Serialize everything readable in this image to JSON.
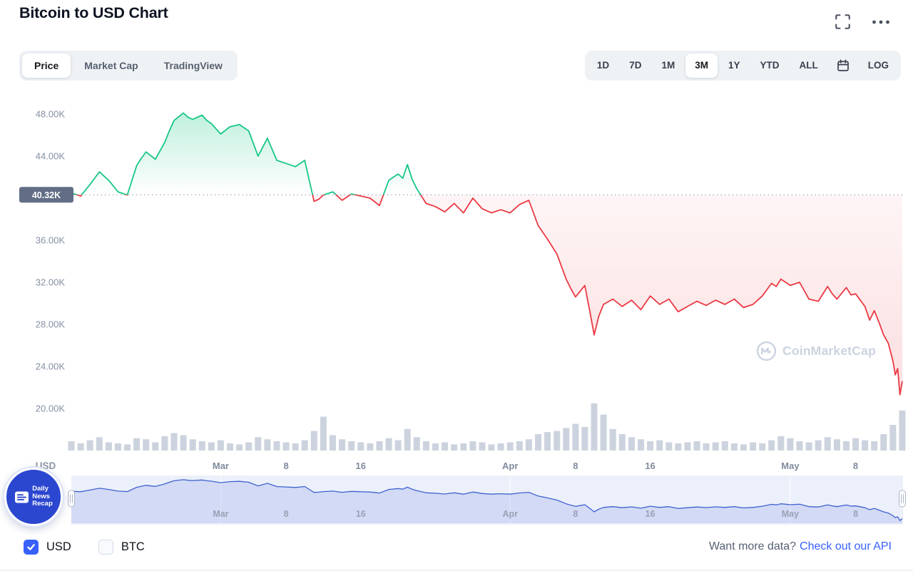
{
  "header": {
    "title": "Bitcoin to USD Chart"
  },
  "toolbar": {
    "chart_tabs": [
      {
        "label": "Price",
        "active": true
      },
      {
        "label": "Market Cap",
        "active": false
      },
      {
        "label": "TradingView",
        "active": false
      }
    ],
    "range_buttons": [
      {
        "label": "1D",
        "active": false
      },
      {
        "label": "7D",
        "active": false
      },
      {
        "label": "1M",
        "active": false
      },
      {
        "label": "3M",
        "active": true
      },
      {
        "label": "1Y",
        "active": false
      },
      {
        "label": "YTD",
        "active": false
      },
      {
        "label": "ALL",
        "active": false
      }
    ],
    "log_label": "LOG"
  },
  "colors": {
    "up": "#16c784",
    "down": "#ea3943",
    "accent": "#3861fb",
    "axis_text": "#848fa3",
    "badge_bg": "#616e85",
    "volume": "#ccd3de",
    "nav_line": "#4062cf"
  },
  "chart_data": {
    "type": "line",
    "title": "Bitcoin to USD Chart",
    "x_axis": {
      "labels": [
        {
          "day": 16,
          "text": "Mar"
        },
        {
          "day": 23,
          "text": "8"
        },
        {
          "day": 31,
          "text": "16"
        },
        {
          "day": 47,
          "text": "Apr"
        },
        {
          "day": 54,
          "text": "8"
        },
        {
          "day": 62,
          "text": "16"
        },
        {
          "day": 77,
          "text": "May"
        },
        {
          "day": 84,
          "text": "8"
        }
      ],
      "month_days": [
        16,
        47,
        77
      ],
      "range_days": [
        0,
        89
      ]
    },
    "y_axis": {
      "title": "USD",
      "range": [
        18,
        49.5
      ],
      "ticks": [
        {
          "value": 48,
          "label": "48.00K"
        },
        {
          "value": 44,
          "label": "44.00K"
        },
        {
          "value": 36,
          "label": "36.00K"
        },
        {
          "value": 32,
          "label": "32.00K"
        },
        {
          "value": 28,
          "label": "28.00K"
        },
        {
          "value": 24,
          "label": "24.00K"
        },
        {
          "value": 20,
          "label": "20.00K"
        }
      ]
    },
    "baseline": {
      "value": 40.32,
      "label": "40.32K"
    },
    "price_series": {
      "name": "BTC/USD (thousands)",
      "points": [
        [
          0,
          40.5
        ],
        [
          1,
          40.2
        ],
        [
          2,
          41.3
        ],
        [
          3,
          42.5
        ],
        [
          4,
          41.7
        ],
        [
          5,
          40.6
        ],
        [
          6,
          40.3
        ],
        [
          7,
          43.1
        ],
        [
          7.5,
          43.8
        ],
        [
          8,
          44.4
        ],
        [
          9,
          43.7
        ],
        [
          10,
          45.3
        ],
        [
          10.5,
          46.4
        ],
        [
          11,
          47.4
        ],
        [
          12,
          48.1
        ],
        [
          12.5,
          47.7
        ],
        [
          13,
          47.5
        ],
        [
          14,
          47.9
        ],
        [
          14.5,
          47.4
        ],
        [
          15,
          47.1
        ],
        [
          16,
          46.1
        ],
        [
          17,
          46.8
        ],
        [
          18,
          47.0
        ],
        [
          19,
          46.4
        ],
        [
          20,
          44.0
        ],
        [
          21,
          45.7
        ],
        [
          22,
          43.6
        ],
        [
          23,
          43.3
        ],
        [
          24,
          43.0
        ],
        [
          25,
          43.6
        ],
        [
          26,
          39.7
        ],
        [
          26.5,
          39.9
        ],
        [
          27,
          40.3
        ],
        [
          28,
          40.6
        ],
        [
          29,
          39.8
        ],
        [
          30,
          40.4
        ],
        [
          31,
          40.2
        ],
        [
          32,
          40.0
        ],
        [
          33,
          39.3
        ],
        [
          34,
          41.7
        ],
        [
          35,
          42.3
        ],
        [
          35.5,
          41.9
        ],
        [
          36,
          43.2
        ],
        [
          36.5,
          41.8
        ],
        [
          37,
          40.9
        ],
        [
          38,
          39.5
        ],
        [
          39,
          39.2
        ],
        [
          40,
          38.7
        ],
        [
          41,
          39.5
        ],
        [
          42,
          38.6
        ],
        [
          43,
          40.0
        ],
        [
          44,
          39.0
        ],
        [
          45,
          38.6
        ],
        [
          46,
          38.9
        ],
        [
          47,
          38.6
        ],
        [
          48,
          39.4
        ],
        [
          49,
          39.8
        ],
        [
          50,
          37.4
        ],
        [
          51,
          36.1
        ],
        [
          52,
          34.7
        ],
        [
          53,
          32.3
        ],
        [
          53.5,
          31.4
        ],
        [
          54,
          30.6
        ],
        [
          55,
          31.7
        ],
        [
          55.5,
          29.4
        ],
        [
          56,
          27.0
        ],
        [
          56.5,
          28.8
        ],
        [
          57,
          29.9
        ],
        [
          58,
          30.4
        ],
        [
          59,
          29.7
        ],
        [
          60,
          30.3
        ],
        [
          61,
          29.4
        ],
        [
          62,
          30.7
        ],
        [
          63,
          29.9
        ],
        [
          64,
          30.4
        ],
        [
          65,
          29.2
        ],
        [
          66,
          29.7
        ],
        [
          67,
          30.2
        ],
        [
          68,
          29.8
        ],
        [
          69,
          30.3
        ],
        [
          70,
          29.9
        ],
        [
          71,
          30.4
        ],
        [
          72,
          29.6
        ],
        [
          73,
          29.9
        ],
        [
          74,
          30.7
        ],
        [
          75,
          31.9
        ],
        [
          75.5,
          31.6
        ],
        [
          76,
          32.3
        ],
        [
          76.5,
          32.0
        ],
        [
          77,
          31.7
        ],
        [
          78,
          32.0
        ],
        [
          79,
          30.4
        ],
        [
          80,
          30.2
        ],
        [
          81,
          31.6
        ],
        [
          81.5,
          30.9
        ],
        [
          82,
          30.4
        ],
        [
          83,
          31.5
        ],
        [
          83.5,
          30.8
        ],
        [
          84,
          30.9
        ],
        [
          85,
          29.7
        ],
        [
          85.5,
          28.4
        ],
        [
          86,
          29.3
        ],
        [
          86.5,
          28.2
        ],
        [
          87,
          27.0
        ],
        [
          87.5,
          26.2
        ],
        [
          88,
          24.5
        ],
        [
          88.25,
          23.2
        ],
        [
          88.5,
          23.8
        ],
        [
          88.75,
          21.3
        ],
        [
          89,
          22.6
        ]
      ]
    },
    "volume_series": {
      "max": 100,
      "values": [
        18,
        14,
        20,
        26,
        16,
        14,
        12,
        24,
        22,
        16,
        28,
        34,
        30,
        22,
        18,
        16,
        20,
        14,
        12,
        16,
        26,
        22,
        18,
        16,
        14,
        20,
        38,
        66,
        30,
        22,
        18,
        16,
        14,
        18,
        24,
        20,
        42,
        26,
        18,
        14,
        16,
        12,
        14,
        18,
        16,
        12,
        14,
        16,
        18,
        22,
        32,
        36,
        38,
        44,
        52,
        46,
        92,
        70,
        42,
        32,
        26,
        22,
        18,
        20,
        16,
        14,
        16,
        18,
        14,
        16,
        18,
        14,
        12,
        16,
        14,
        20,
        28,
        24,
        18,
        16,
        20,
        26,
        22,
        18,
        24,
        20,
        18,
        32,
        50,
        78
      ]
    },
    "legend_position": "none",
    "grid": false
  },
  "watermark": {
    "text": "CoinMarketCap"
  },
  "badge": {
    "lines": [
      "Daily",
      "News",
      "Recap"
    ]
  },
  "footer": {
    "currency_toggles": [
      {
        "label": "USD",
        "checked": true
      },
      {
        "label": "BTC",
        "checked": false
      }
    ],
    "more_data_text": "Want more data?",
    "api_link_text": "Check out our API"
  }
}
